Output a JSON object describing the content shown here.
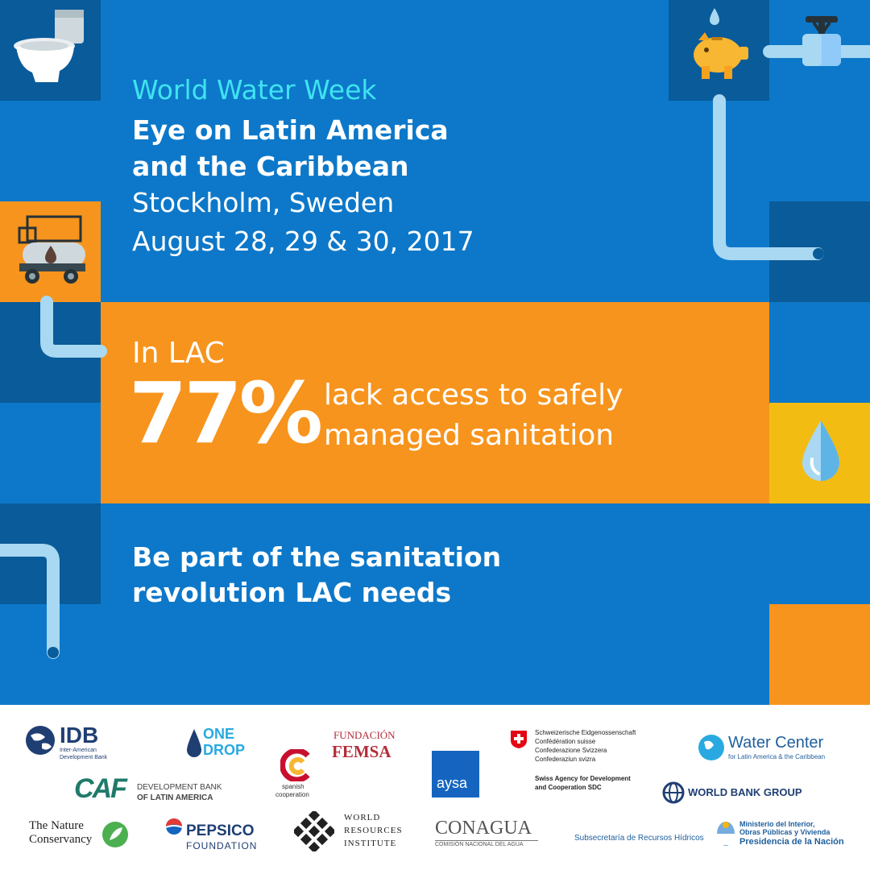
{
  "colors": {
    "background_blue": "#0d78c9",
    "dark_blue": "#0a5b99",
    "orange": "#f7941d",
    "yellow": "#f3bc12",
    "cyan_text": "#3fe3f0",
    "pipe": "#a8d8f2"
  },
  "icons": [
    "toilet-icon",
    "piggy-bank-icon",
    "water-valve-icon",
    "water-tank-truck-icon",
    "water-drop-icon"
  ],
  "header": {
    "event": "World Water Week",
    "subtitle_line1": "Eye on Latin America",
    "subtitle_line2": "and the Caribbean",
    "location": "Stockholm, Sweden",
    "dates": "August 28, 29 & 30, 2017"
  },
  "stat": {
    "intro": "In LAC",
    "percent": "77%",
    "desc_line1": "lack access to safely",
    "desc_line2": "managed sanitation"
  },
  "cta": {
    "line1": "Be part of the sanitation",
    "line2": "revolution LAC needs"
  },
  "logos": {
    "idb": {
      "name": "IDB",
      "sub1": "Inter-American",
      "sub2": "Development Bank"
    },
    "onedrop": {
      "l1": "ONE",
      "l2": "DROP"
    },
    "femsa": {
      "l1": "FUNDACIÓN",
      "l2": "FEMSA"
    },
    "aysa": "aysa",
    "swiss": {
      "l1": "Schweizerische Eidgenossenschaft",
      "l2": "Confédération suisse",
      "l3": "Confederazione Svizzera",
      "l4": "Confederaziun svizra",
      "l5": "Swiss Agency for Development",
      "l6": "and Cooperation SDC"
    },
    "water_center": {
      "name": "Water Center",
      "sub": "for Latin America & the Caribbean"
    },
    "caf": {
      "name": "CAF",
      "l1": "DEVELOPMENT BANK",
      "l2": "OF LATIN AMERICA"
    },
    "spanish": {
      "l1": "spanish",
      "l2": "cooperation"
    },
    "world_bank": "WORLD BANK GROUP",
    "tnc": {
      "l1": "The Nature",
      "l2": "Conservancy"
    },
    "pepsico": {
      "l1": "PEPSICO",
      "l2": "FOUNDATION"
    },
    "wri": {
      "l1": "WORLD",
      "l2": "RESOURCES",
      "l3": "INSTITUTE"
    },
    "conagua": {
      "name": "CONAGUA",
      "sub": "COMISIÓN NACIONAL DEL AGUA"
    },
    "subsecretaria": "Subsecretaría de Recursos Hídricos",
    "ministerio": {
      "l1": "Ministerio del Interior,",
      "l2": "Obras Públicas y Vivienda",
      "l3": "Presidencia de la Nación"
    }
  }
}
